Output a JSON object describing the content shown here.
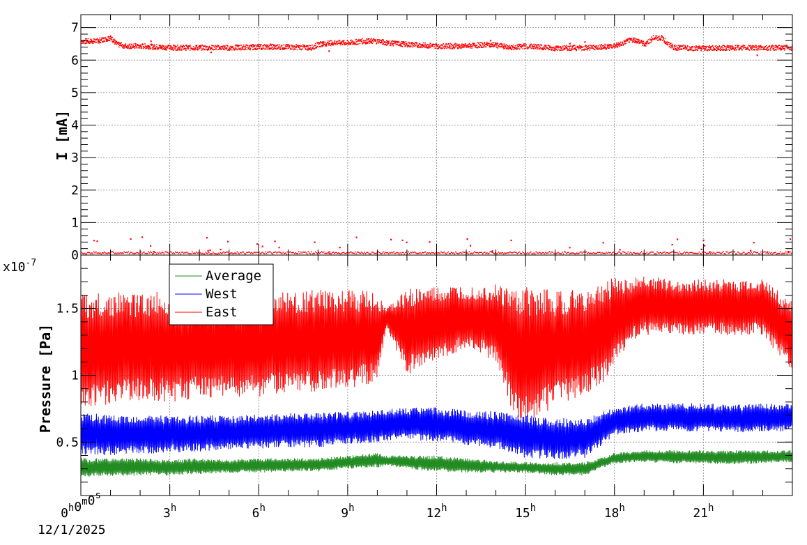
{
  "chart_data": [
    {
      "type": "scatter",
      "ylabel": "I [mA]",
      "ylim": [
        0,
        7.4
      ],
      "yticks": [
        0,
        1,
        2,
        3,
        4,
        5,
        6,
        7
      ],
      "xlim_hours": [
        0,
        24
      ],
      "grid": true,
      "series": [
        {
          "color": "#ff0000",
          "x_hours": [
            0,
            0.5,
            1,
            1.2,
            1.5,
            2,
            3,
            4,
            5,
            6,
            7,
            7.8,
            8,
            8.5,
            9,
            9.5,
            10,
            10.3,
            11,
            12,
            13,
            13.8,
            14.5,
            15,
            16,
            17,
            17.5,
            18,
            18.6,
            18.8,
            19,
            19.3,
            19.6,
            19.8,
            20,
            21,
            22,
            23,
            23.9
          ],
          "values": [
            6.6,
            6.6,
            6.7,
            6.5,
            6.45,
            6.45,
            6.4,
            6.4,
            6.4,
            6.42,
            6.42,
            6.4,
            6.5,
            6.55,
            6.55,
            6.6,
            6.6,
            6.55,
            6.5,
            6.45,
            6.45,
            6.5,
            6.4,
            6.45,
            6.38,
            6.4,
            6.42,
            6.45,
            6.65,
            6.6,
            6.5,
            6.7,
            6.7,
            6.5,
            6.4,
            6.38,
            6.4,
            6.4,
            6.4
          ]
        },
        {
          "color": "#ff0000",
          "note_level": "near-zero cluster",
          "x_hours": [
            0,
            4,
            8,
            12,
            16,
            20,
            23.9
          ],
          "values": [
            0.05,
            0.05,
            0.05,
            0.05,
            0.05,
            0.05,
            0.05
          ]
        }
      ]
    },
    {
      "type": "line",
      "ylabel": "Pressure [Pa]",
      "yscale_label": "x10",
      "yscale_exp": "-7",
      "ylim": [
        0.1,
        1.9
      ],
      "yticks": [
        0.5,
        1,
        1.5
      ],
      "ytick_labels": [
        "0.5",
        "1",
        "1.5"
      ],
      "xlim_hours": [
        0,
        24
      ],
      "xticks_hours": [
        0,
        3,
        6,
        9,
        12,
        15,
        18,
        21
      ],
      "xtick_labels": [
        {
          "h": "0",
          "m": "0",
          "s": "0"
        },
        {
          "h": "3"
        },
        {
          "h": "6"
        },
        {
          "h": "9"
        },
        {
          "h": "12"
        },
        {
          "h": "15"
        },
        {
          "h": "18"
        },
        {
          "h": "21"
        }
      ],
      "xtick_units": {
        "h": "h",
        "m": "m",
        "s": "s"
      },
      "x_date_label": "12/1/2025",
      "legend_position": "top-left",
      "grid": true,
      "series": [
        {
          "name": "Average",
          "color": "#228b22",
          "x_hours": [
            0,
            1,
            2,
            3,
            4,
            5,
            6,
            7,
            8,
            9,
            10,
            10.3,
            11,
            12,
            13,
            14,
            15,
            16,
            17,
            17.5,
            18,
            19,
            20,
            21,
            22,
            23,
            23.9
          ],
          "upper": [
            0.38,
            0.38,
            0.38,
            0.37,
            0.38,
            0.37,
            0.38,
            0.38,
            0.38,
            0.4,
            0.42,
            0.4,
            0.4,
            0.4,
            0.38,
            0.36,
            0.35,
            0.35,
            0.35,
            0.38,
            0.42,
            0.44,
            0.44,
            0.44,
            0.44,
            0.44,
            0.44
          ],
          "lower": [
            0.24,
            0.24,
            0.25,
            0.25,
            0.26,
            0.27,
            0.27,
            0.28,
            0.28,
            0.3,
            0.31,
            0.32,
            0.3,
            0.28,
            0.27,
            0.27,
            0.27,
            0.25,
            0.25,
            0.3,
            0.34,
            0.35,
            0.34,
            0.34,
            0.33,
            0.34,
            0.35
          ]
        },
        {
          "name": "West",
          "color": "#0000ff",
          "x_hours": [
            0,
            1,
            2,
            3,
            4,
            5,
            6,
            7,
            8,
            9,
            10,
            11,
            12,
            13,
            14,
            15,
            16,
            17,
            17.5,
            18,
            19,
            20,
            21,
            22,
            23,
            23.9
          ],
          "upper": [
            0.73,
            0.7,
            0.7,
            0.7,
            0.7,
            0.7,
            0.71,
            0.72,
            0.72,
            0.73,
            0.74,
            0.76,
            0.76,
            0.74,
            0.73,
            0.71,
            0.68,
            0.68,
            0.72,
            0.76,
            0.79,
            0.79,
            0.79,
            0.78,
            0.79,
            0.79
          ],
          "lower": [
            0.4,
            0.4,
            0.41,
            0.42,
            0.43,
            0.44,
            0.45,
            0.46,
            0.46,
            0.48,
            0.5,
            0.52,
            0.5,
            0.48,
            0.45,
            0.38,
            0.37,
            0.38,
            0.46,
            0.55,
            0.58,
            0.58,
            0.58,
            0.57,
            0.58,
            0.58
          ]
        },
        {
          "name": "East",
          "color": "#ff0000",
          "x_hours": [
            0,
            1,
            2,
            3,
            4,
            5,
            6,
            7,
            8,
            9,
            10,
            10.3,
            11,
            12,
            13,
            14,
            14.5,
            15,
            15.5,
            16,
            17,
            17.5,
            18,
            18.5,
            19,
            20,
            21,
            22,
            23,
            23.9
          ],
          "upper": [
            1.62,
            1.62,
            1.62,
            1.63,
            1.62,
            1.62,
            1.62,
            1.63,
            1.64,
            1.64,
            1.63,
            1.5,
            1.65,
            1.66,
            1.67,
            1.68,
            1.66,
            1.66,
            1.66,
            1.64,
            1.64,
            1.68,
            1.75,
            1.72,
            1.75,
            1.72,
            1.72,
            1.72,
            1.72,
            1.58
          ],
          "lower": [
            0.75,
            0.78,
            0.8,
            0.8,
            0.82,
            0.82,
            0.84,
            0.86,
            0.88,
            0.9,
            0.95,
            1.35,
            1.0,
            1.1,
            1.2,
            1.1,
            0.75,
            0.63,
            0.7,
            0.75,
            0.85,
            0.92,
            1.05,
            1.25,
            1.3,
            1.3,
            1.3,
            1.3,
            1.3,
            1.05
          ]
        }
      ]
    }
  ]
}
